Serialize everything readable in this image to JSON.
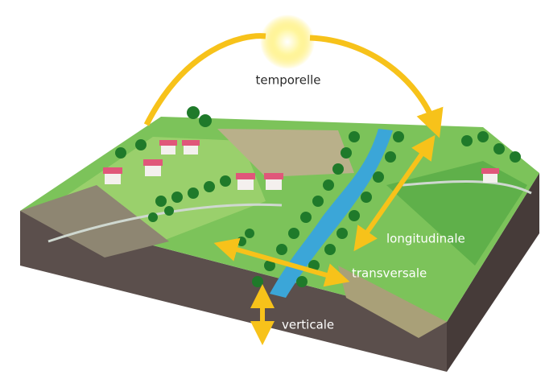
{
  "arrows": [
    {
      "label": "temporelle"
    },
    {
      "label": "longitudinale"
    },
    {
      "label": "transversale"
    },
    {
      "label": "verticale"
    }
  ]
}
